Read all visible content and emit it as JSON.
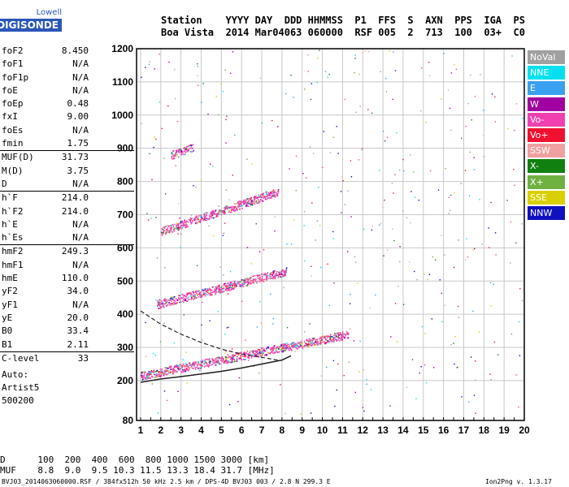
{
  "logo": {
    "line1": "Lowell",
    "line2": "DIGISONDE"
  },
  "header": {
    "labels": [
      "Station",
      "YYYY DAY",
      "DDD HHMMSS",
      "P1",
      "FFS",
      "S",
      "AXN",
      "PPS",
      "IGA",
      "PS"
    ],
    "values": [
      "Boa Vista",
      "2014 Mar04",
      "063 060000",
      "RSF",
      "005",
      "2",
      "713",
      "100",
      "03+",
      "C0"
    ]
  },
  "params": [
    {
      "name": "foF2",
      "value": "8.450"
    },
    {
      "name": "foF1",
      "value": "N/A"
    },
    {
      "name": "foF1p",
      "value": "N/A"
    },
    {
      "name": "foE",
      "value": "N/A"
    },
    {
      "name": "foEp",
      "value": "0.48"
    },
    {
      "name": "fxI",
      "value": "9.00"
    },
    {
      "name": "foEs",
      "value": "N/A"
    },
    {
      "name": "fmin",
      "value": "1.75"
    },
    {
      "name": "MUF(D)",
      "value": "31.73"
    },
    {
      "name": "M(D)",
      "value": "3.75"
    },
    {
      "name": "D",
      "value": "N/A"
    },
    {
      "name": "h`F",
      "value": "214.0"
    },
    {
      "name": "h`F2",
      "value": "214.0"
    },
    {
      "name": "h`E",
      "value": "N/A"
    },
    {
      "name": "h`Es",
      "value": "N/A"
    },
    {
      "name": "hmF2",
      "value": "249.3"
    },
    {
      "name": "hmF1",
      "value": "N/A"
    },
    {
      "name": "hmE",
      "value": "110.0"
    },
    {
      "name": "yF2",
      "value": "34.0"
    },
    {
      "name": "yF1",
      "value": "N/A"
    },
    {
      "name": "yE",
      "value": "20.0"
    },
    {
      "name": "B0",
      "value": "33.4"
    },
    {
      "name": "B1",
      "value": "2.11"
    },
    {
      "name": "C-level",
      "value": "33"
    }
  ],
  "auto": [
    "Auto:",
    "Artist5",
    "500200"
  ],
  "legend": [
    {
      "label": "NoVal",
      "color": "#a0a0a0"
    },
    {
      "label": "NNE",
      "color": "#00e0f0"
    },
    {
      "label": "E",
      "color": "#3aa0f0"
    },
    {
      "label": "W",
      "color": "#a000a0"
    },
    {
      "label": "Vo-",
      "color": "#f040b0"
    },
    {
      "label": "Vo+",
      "color": "#f01030"
    },
    {
      "label": "SSW",
      "color": "#f0a0a0"
    },
    {
      "label": "X-",
      "color": "#108010"
    },
    {
      "label": "X+",
      "color": "#70b040"
    },
    {
      "label": "SSE",
      "color": "#d8d000"
    },
    {
      "label": "NNW",
      "color": "#1010c0"
    }
  ],
  "footer": {
    "line1": "D      100  200  400  600  800 1000 1500 3000 [km]",
    "line2": "MUF    8.8  9.0  9.5 10.3 11.5 13.3 18.4 31.7 [MHz]",
    "line3": "BVJ03_2014063060000.RSF / 384fx512h 50 kHz 2.5 km / DPS-4D BVJ03 003 / 2.8 N 299.3 E",
    "version": "Ion2Png v. 1.3.17"
  },
  "chart_data": {
    "type": "scatter",
    "xlim": [
      0.8,
      20
    ],
    "ylim": [
      80,
      1200
    ],
    "x_ticks": [
      1,
      2,
      3,
      4,
      5,
      6,
      7,
      8,
      9,
      10,
      11,
      12,
      13,
      14,
      15,
      16,
      17,
      18,
      19,
      20
    ],
    "y_ticks": [
      80,
      200,
      300,
      400,
      500,
      600,
      700,
      800,
      900,
      1000,
      1100,
      1200
    ],
    "grid": true,
    "traces": [
      {
        "name": "F2 trace",
        "color": "#f040b0",
        "fmin": 1.0,
        "fmax": 11.3,
        "h0": 215,
        "h1": 340
      },
      {
        "name": "2F2 multihop",
        "color": "#f040b0",
        "fmin": 1.8,
        "fmax": 8.2,
        "h0": 430,
        "h1": 530
      },
      {
        "name": "3F2 multihop",
        "color": "#f040b0",
        "fmin": 2.0,
        "fmax": 7.8,
        "h0": 650,
        "h1": 770
      },
      {
        "name": "4F2 multihop",
        "color": "#f040b0",
        "fmin": 2.5,
        "fmax": 3.6,
        "h0": 880,
        "h1": 905
      }
    ],
    "profile_solid": {
      "x": [
        1.0,
        2.0,
        3.0,
        4.0,
        5.0,
        6.0,
        7.0,
        8.0,
        8.45
      ],
      "y": [
        195,
        205,
        212,
        220,
        228,
        238,
        250,
        262,
        275
      ]
    },
    "profile_dashed": {
      "x": [
        1.0,
        2.0,
        3.0,
        4.0,
        5.0,
        6.0,
        7.0,
        7.8
      ],
      "y": [
        410,
        370,
        340,
        315,
        295,
        280,
        270,
        262
      ]
    }
  }
}
